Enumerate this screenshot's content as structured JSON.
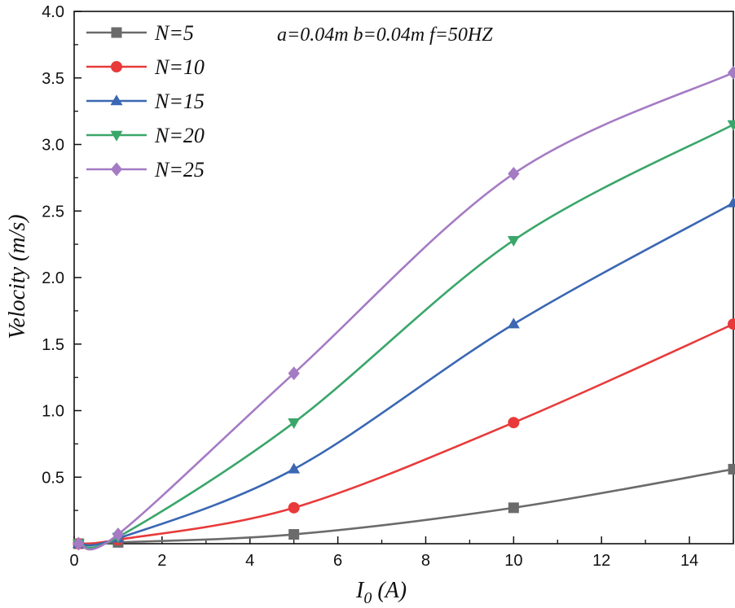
{
  "chart_data": {
    "type": "line",
    "title": "",
    "annotation": "a=0.04m b=0.04m f=50HZ",
    "xlabel": "I",
    "xlabel_sub": "0",
    "xlabel_unit": " (A)",
    "ylabel": "Velocity (m/s)",
    "xlim": [
      0,
      15
    ],
    "ylim": [
      0,
      4.0
    ],
    "xticks": [
      "0",
      "2",
      "4",
      "6",
      "8",
      "10",
      "12",
      "14"
    ],
    "yticks": [
      "0.5",
      "1.0",
      "1.5",
      "2.0",
      "2.5",
      "3.0",
      "3.5",
      "4.0"
    ],
    "legend_position": "top-left",
    "x": [
      0.1,
      1,
      5,
      10,
      15
    ],
    "series": [
      {
        "name": "N=5",
        "color": "#6b6b6b",
        "marker": "square",
        "values": [
          0.0,
          0.01,
          0.07,
          0.27,
          0.56
        ]
      },
      {
        "name": "N=10",
        "color": "#e83a3a",
        "marker": "circle",
        "values": [
          0.0,
          0.03,
          0.27,
          0.91,
          1.65
        ]
      },
      {
        "name": "N=15",
        "color": "#3b67b3",
        "marker": "triangle-up",
        "values": [
          0.0,
          0.04,
          0.56,
          1.65,
          2.56
        ]
      },
      {
        "name": "N=20",
        "color": "#3aa66a",
        "marker": "triangle-down",
        "values": [
          0.0,
          0.05,
          0.91,
          2.28,
          3.15
        ]
      },
      {
        "name": "N=25",
        "color": "#a57bc4",
        "marker": "diamond",
        "values": [
          0.0,
          0.07,
          1.28,
          2.78,
          3.54
        ]
      }
    ]
  }
}
